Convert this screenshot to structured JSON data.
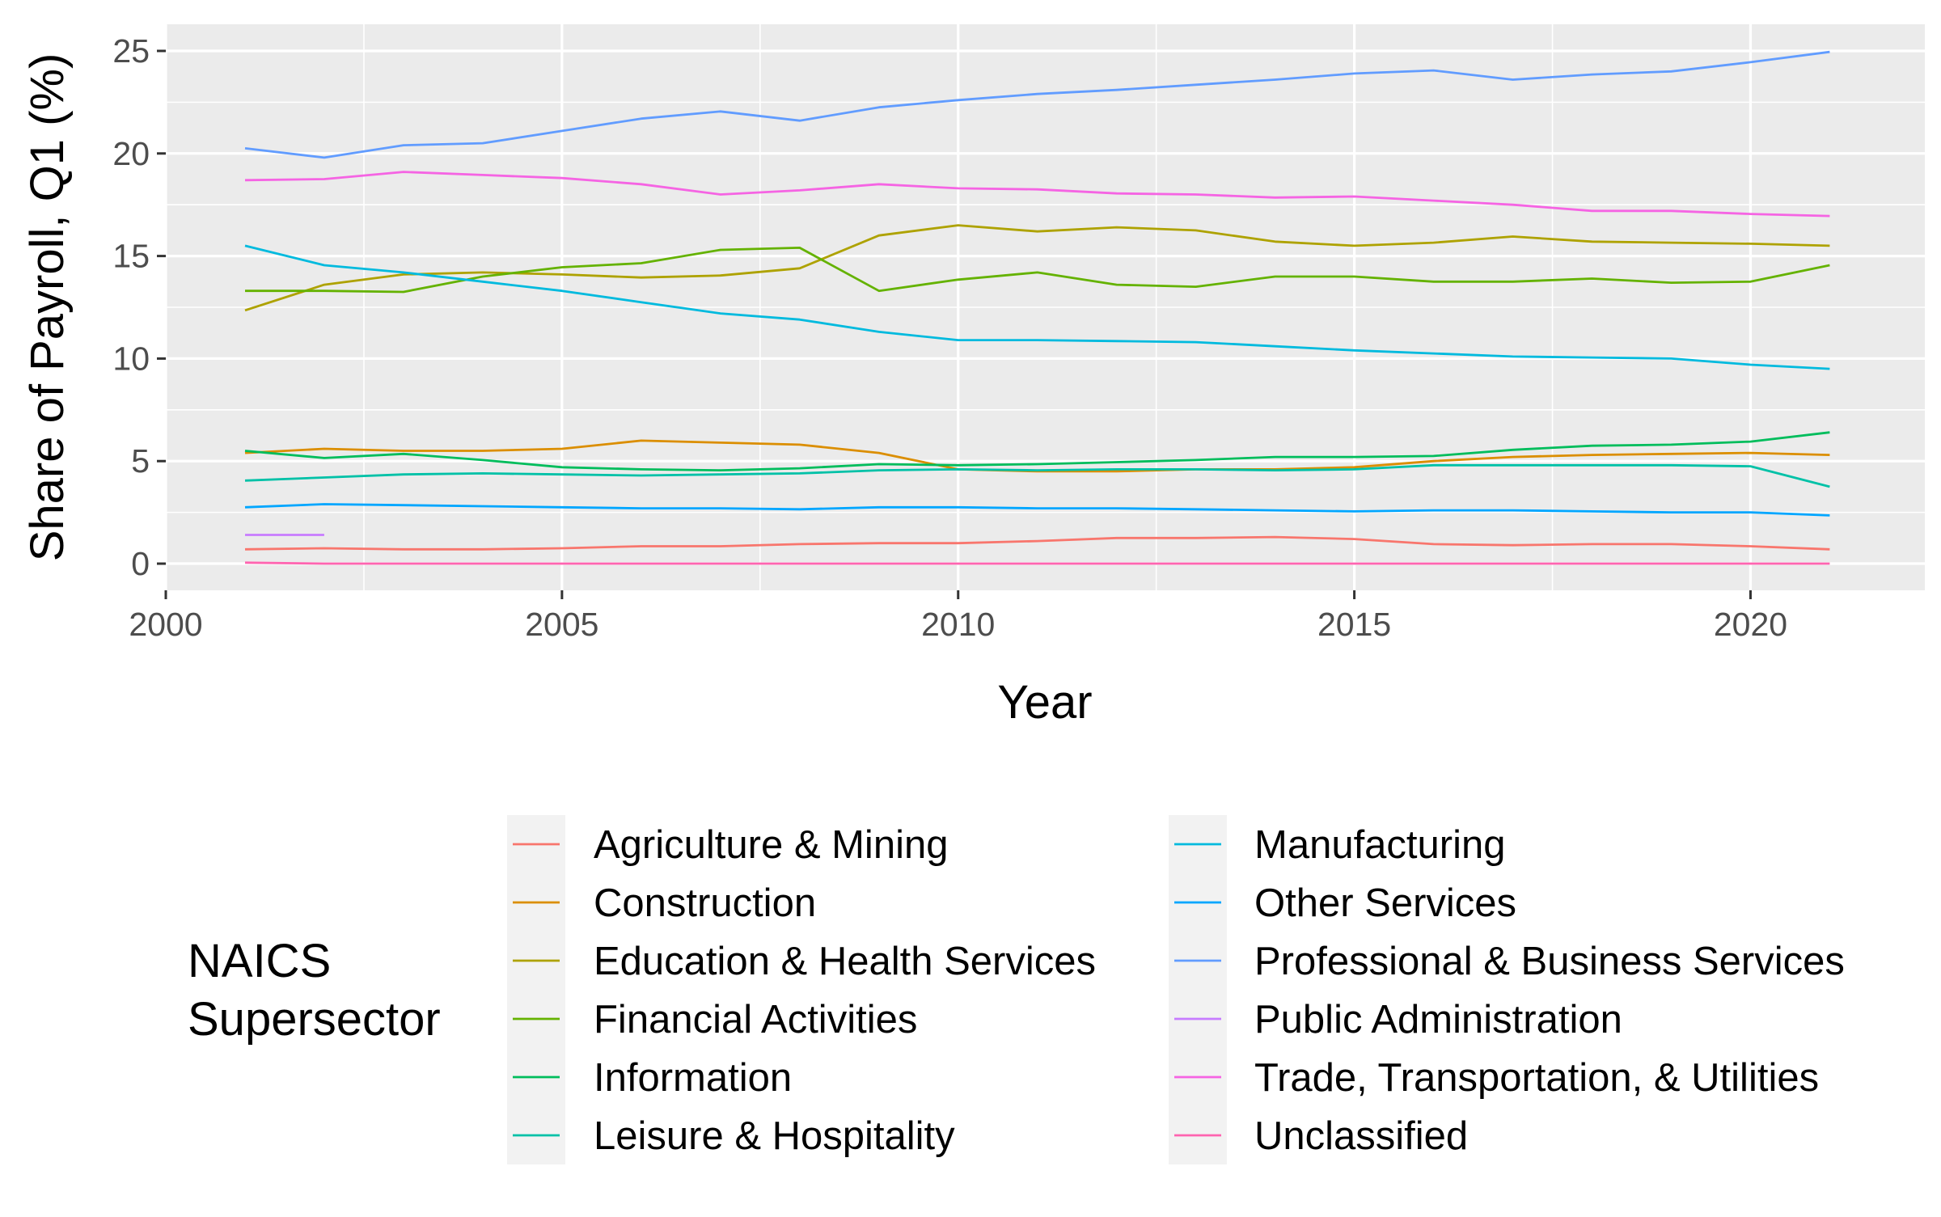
{
  "chart_data": {
    "type": "line",
    "title": "",
    "xlabel": "Year",
    "ylabel": "Share of Payroll, Q1 (%)",
    "xlim": [
      2000,
      2022.2
    ],
    "ylim": [
      -1.3,
      26.3
    ],
    "x_ticks": [
      2000,
      2005,
      2010,
      2015,
      2020
    ],
    "y_ticks": [
      0,
      5,
      10,
      15,
      20,
      25
    ],
    "grid": true,
    "legend_position": "bottom",
    "legend_title": "NAICS\nSupersector",
    "x": [
      2001,
      2002,
      2003,
      2004,
      2005,
      2006,
      2007,
      2008,
      2009,
      2010,
      2011,
      2012,
      2013,
      2014,
      2015,
      2016,
      2017,
      2018,
      2019,
      2020,
      2021
    ],
    "series": [
      {
        "name": "Agriculture & Mining",
        "color": "#F8766D",
        "values": [
          0.7,
          0.75,
          0.7,
          0.7,
          0.75,
          0.85,
          0.85,
          0.95,
          1.0,
          1.0,
          1.1,
          1.25,
          1.25,
          1.3,
          1.2,
          0.95,
          0.9,
          0.95,
          0.95,
          0.85,
          0.7
        ]
      },
      {
        "name": "Construction",
        "color": "#DB8E00",
        "values": [
          5.4,
          5.6,
          5.5,
          5.5,
          5.6,
          6.0,
          5.9,
          5.8,
          5.4,
          4.6,
          4.5,
          4.5,
          4.6,
          4.6,
          4.7,
          5.0,
          5.2,
          5.3,
          5.35,
          5.4,
          5.3
        ]
      },
      {
        "name": "Education & Health Services",
        "color": "#AEA200",
        "values": [
          12.35,
          13.6,
          14.1,
          14.2,
          14.1,
          13.95,
          14.05,
          14.4,
          16.0,
          16.5,
          16.2,
          16.4,
          16.25,
          15.7,
          15.5,
          15.65,
          15.95,
          15.7,
          15.65,
          15.6,
          15.5
        ]
      },
      {
        "name": "Financial Activities",
        "color": "#64B200",
        "values": [
          13.3,
          13.3,
          13.25,
          14.0,
          14.45,
          14.65,
          15.3,
          15.4,
          13.3,
          13.85,
          14.2,
          13.6,
          13.5,
          14.0,
          14.0,
          13.75,
          13.75,
          13.9,
          13.7,
          13.75,
          14.55
        ]
      },
      {
        "name": "Information",
        "color": "#00BD5C",
        "values": [
          5.5,
          5.15,
          5.35,
          5.05,
          4.7,
          4.6,
          4.55,
          4.65,
          4.85,
          4.8,
          4.85,
          4.95,
          5.05,
          5.2,
          5.2,
          5.25,
          5.55,
          5.75,
          5.8,
          5.95,
          6.4
        ]
      },
      {
        "name": "Leisure & Hospitality",
        "color": "#00C1A7",
        "values": [
          4.05,
          4.2,
          4.35,
          4.4,
          4.35,
          4.3,
          4.35,
          4.4,
          4.55,
          4.6,
          4.55,
          4.6,
          4.6,
          4.55,
          4.6,
          4.8,
          4.8,
          4.8,
          4.8,
          4.75,
          3.75
        ]
      },
      {
        "name": "Manufacturing",
        "color": "#00BADE",
        "values": [
          15.5,
          14.55,
          14.2,
          13.75,
          13.3,
          12.75,
          12.2,
          11.9,
          11.3,
          10.9,
          10.9,
          10.85,
          10.8,
          10.6,
          10.4,
          10.25,
          10.1,
          10.05,
          10.0,
          9.7,
          9.5
        ]
      },
      {
        "name": "Other Services",
        "color": "#00A6FF",
        "values": [
          2.75,
          2.9,
          2.85,
          2.8,
          2.75,
          2.7,
          2.7,
          2.65,
          2.75,
          2.75,
          2.7,
          2.7,
          2.65,
          2.6,
          2.55,
          2.6,
          2.6,
          2.55,
          2.5,
          2.5,
          2.35
        ]
      },
      {
        "name": "Professional & Business Services",
        "color": "#619CFF",
        "values": [
          20.25,
          19.8,
          20.4,
          20.5,
          21.1,
          21.7,
          22.05,
          21.6,
          22.25,
          22.6,
          22.9,
          23.1,
          23.35,
          23.6,
          23.9,
          24.05,
          23.6,
          23.85,
          24.0,
          24.45,
          24.95
        ]
      },
      {
        "name": "Public Administration",
        "color": "#C77CFF",
        "values": [
          1.4,
          1.4,
          null,
          null,
          null,
          null,
          null,
          null,
          null,
          null,
          null,
          null,
          null,
          null,
          null,
          null,
          null,
          null,
          null,
          null,
          null
        ]
      },
      {
        "name": "Trade, Transportation, & Utilities",
        "color": "#F564E3",
        "values": [
          18.7,
          18.75,
          19.1,
          18.95,
          18.8,
          18.5,
          18.0,
          18.2,
          18.5,
          18.3,
          18.25,
          18.05,
          18.0,
          17.85,
          17.9,
          17.7,
          17.5,
          17.2,
          17.2,
          17.05,
          16.95
        ]
      },
      {
        "name": "Unclassified",
        "color": "#FF64B0",
        "values": [
          0.05,
          0.0,
          0.0,
          0.0,
          0.0,
          0.0,
          0.0,
          0.0,
          0.0,
          0.0,
          0.0,
          0.0,
          0.0,
          0.0,
          0.0,
          0.0,
          0.0,
          0.0,
          0.0,
          0.0,
          0.0
        ]
      }
    ]
  }
}
